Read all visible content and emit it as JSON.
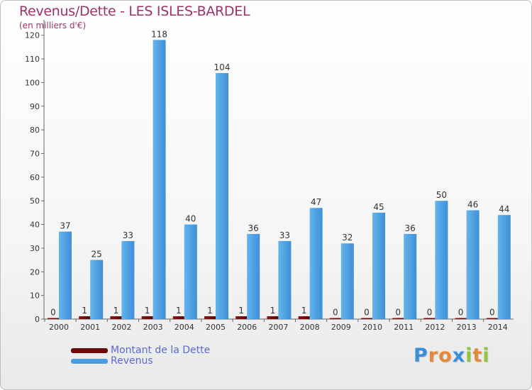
{
  "title": "Revenus/Dette - LES ISLES-BARDEL",
  "subtitle": "(en milliers d'€)",
  "legend": [
    {
      "label": "Montant de la Dette",
      "color": "#6b0a0a"
    },
    {
      "label": "Revenus",
      "color": "#4a9de0"
    }
  ],
  "logo": {
    "letters": [
      "P",
      "r",
      "o",
      "x",
      "i",
      "t",
      "i"
    ],
    "colors": [
      "#3b8fd8",
      "#e5883a",
      "#e5883a",
      "#3b8fd8",
      "#8ec63f",
      "#e5883a",
      "#8ec63f"
    ]
  },
  "colors": {
    "debt": "#6b0a0a",
    "revenue": "#4a9de0",
    "revenue_dark": "#2e7cc4",
    "axis": "#666666",
    "grid": "#dddddd"
  },
  "chart_data": {
    "type": "bar",
    "categories": [
      "2000",
      "2001",
      "2002",
      "2003",
      "2004",
      "2005",
      "2006",
      "2007",
      "2008",
      "2009",
      "2010",
      "2011",
      "2012",
      "2013",
      "2014"
    ],
    "series": [
      {
        "name": "Montant de la Dette",
        "values": [
          0,
          1,
          1,
          1,
          1,
          1,
          1,
          1,
          1,
          0,
          0,
          0,
          0,
          0,
          0
        ]
      },
      {
        "name": "Revenus",
        "values": [
          37,
          25,
          33,
          118,
          40,
          104,
          36,
          33,
          47,
          32,
          45,
          36,
          50,
          46,
          44
        ]
      }
    ],
    "yticks": [
      0,
      10,
      20,
      30,
      40,
      50,
      60,
      70,
      80,
      90,
      100,
      110,
      120
    ],
    "ylim": [
      0,
      125
    ],
    "grid": false,
    "legend_position": "bottom-left"
  }
}
